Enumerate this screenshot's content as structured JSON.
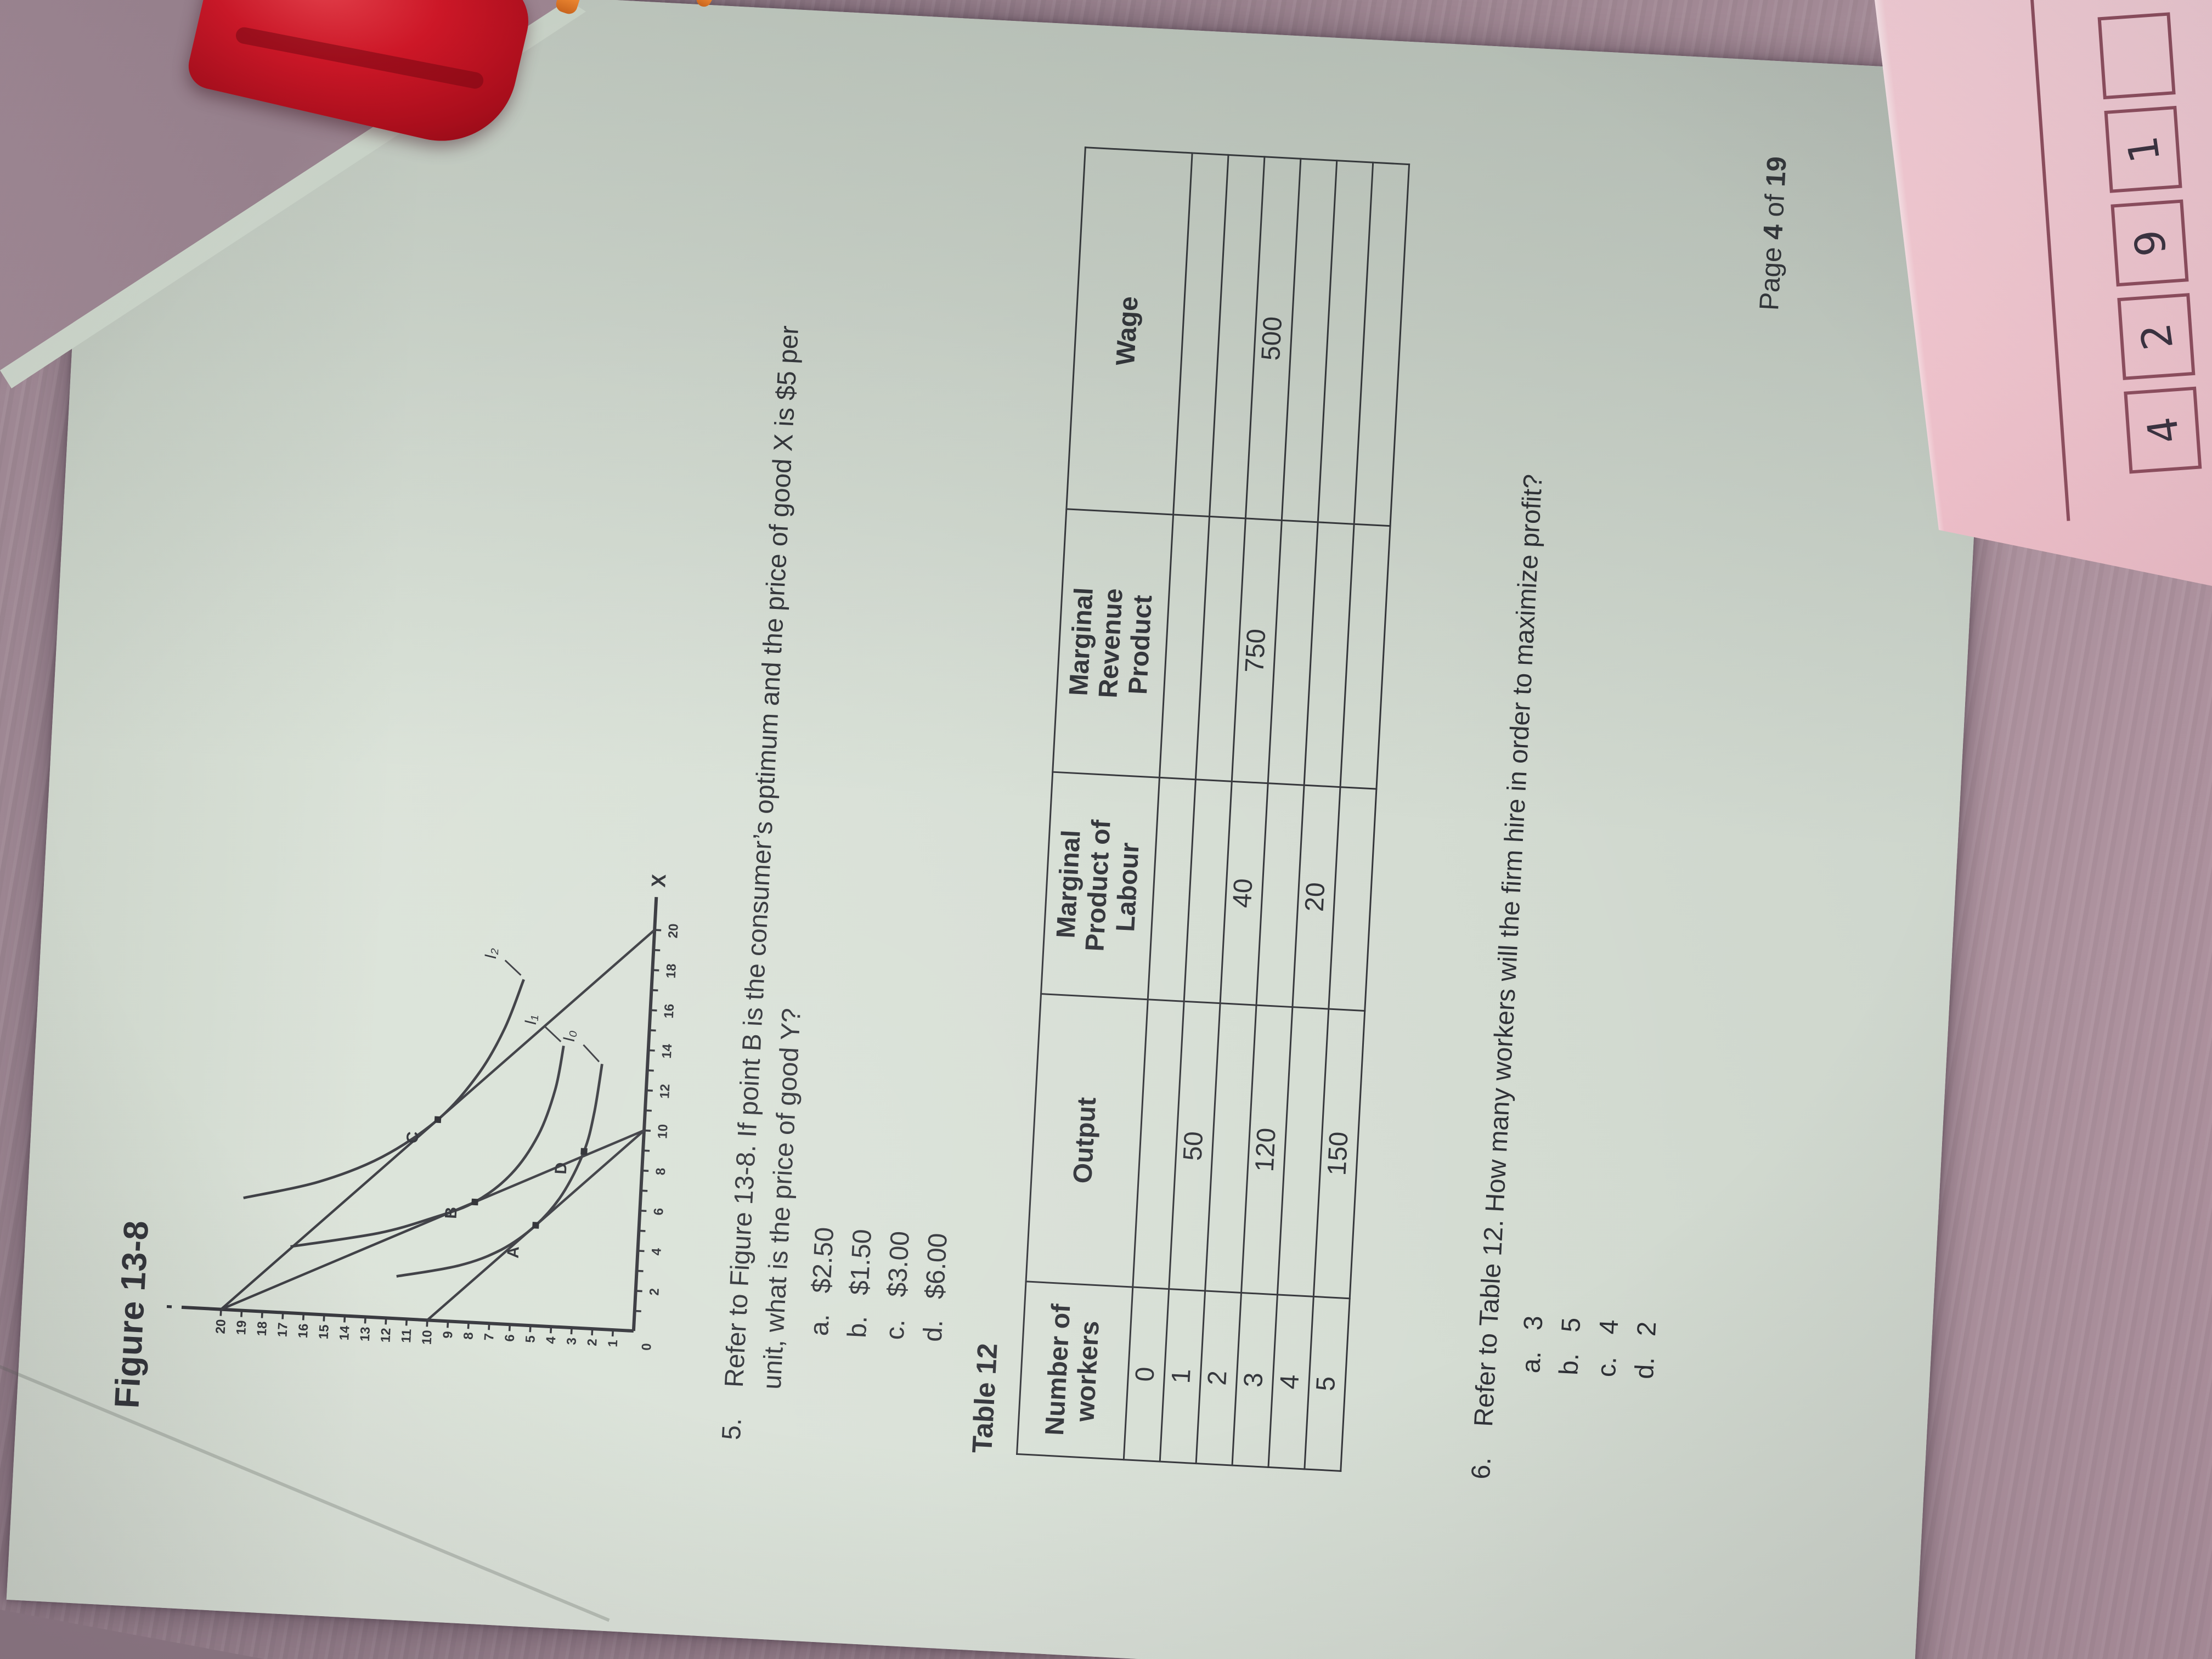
{
  "scene": {
    "desk_color": "#9d8692",
    "paper_color": "#d9e1d6",
    "pink_note": {
      "color": "#f2c8d1",
      "line_color": "#8f4f5f",
      "handwritten_cells": [
        "4",
        "2",
        "9",
        "1",
        ""
      ]
    }
  },
  "page": {
    "figure_title": "Figure 13-8",
    "q5": {
      "number": "5.",
      "line1": "Refer to Figure 13-8. If point B is the consumer’s optimum and the price of good X is $5 per",
      "line2": "unit, what is the price of good Y?",
      "options": [
        {
          "letter": "a.",
          "text": "$2.50"
        },
        {
          "letter": "b.",
          "text": "$1.50"
        },
        {
          "letter": "c.",
          "text": "$3.00"
        },
        {
          "letter": "d.",
          "text": "$6.00"
        }
      ]
    },
    "table_title": "Table 12",
    "table": {
      "columns": [
        {
          "lines": [
            "Number of",
            "workers"
          ]
        },
        {
          "lines": [
            "Output"
          ]
        },
        {
          "lines": [
            "Marginal",
            "Product of",
            "Labour"
          ]
        },
        {
          "lines": [
            "Marginal",
            "Revenue",
            "Product"
          ]
        },
        {
          "lines": [
            "Wage"
          ]
        }
      ],
      "rows": [
        [
          "0",
          "",
          "",
          "",
          ""
        ],
        [
          "1",
          "50",
          "",
          "",
          ""
        ],
        [
          "2",
          "",
          "40",
          "750",
          "500"
        ],
        [
          "3",
          "120",
          "",
          "",
          ""
        ],
        [
          "4",
          "",
          "20",
          "",
          ""
        ],
        [
          "5",
          "150",
          "",
          "",
          ""
        ]
      ]
    },
    "q6": {
      "number": "6.",
      "line1": "Refer to Table 12. How many workers will the firm hire in order to maximize profit?",
      "options": [
        {
          "letter": "a.",
          "text": "3"
        },
        {
          "letter": "b.",
          "text": "5"
        },
        {
          "letter": "c.",
          "text": "4"
        },
        {
          "letter": "d.",
          "text": "2"
        }
      ]
    },
    "footer": {
      "page_word": "Page",
      "page_num": "4",
      "of_word": "of",
      "total": "19"
    }
  },
  "chart_data": {
    "type": "line",
    "title": "Figure 13-8",
    "xlabel": "X",
    "ylabel": "Y",
    "origin_label": "0",
    "xlim": [
      0,
      20
    ],
    "ylim": [
      0,
      20
    ],
    "x_tick_labels": [
      2,
      4,
      6,
      8,
      10,
      12,
      14,
      16,
      18,
      20
    ],
    "y_tick_labels": [
      1,
      2,
      3,
      4,
      5,
      6,
      7,
      8,
      9,
      10,
      11,
      12,
      13,
      14,
      15,
      16,
      17,
      18,
      19,
      20
    ],
    "grid": false,
    "budget_lines": [
      {
        "name": "budget-line-outer",
        "points": [
          [
            0,
            20
          ],
          [
            20,
            0
          ]
        ]
      },
      {
        "name": "budget-line-steep",
        "points": [
          [
            0,
            20
          ],
          [
            10,
            0
          ]
        ]
      },
      {
        "name": "budget-line-inner",
        "points": [
          [
            0,
            10
          ],
          [
            10,
            0
          ]
        ]
      }
    ],
    "indifference_curves": [
      {
        "label": "I₀",
        "points": [
          [
            2.1,
            11.6
          ],
          [
            2.8,
            8.6
          ],
          [
            3.7,
            6.6
          ],
          [
            5,
            5
          ],
          [
            6.6,
            3.8
          ],
          [
            8.8,
            2.85
          ],
          [
            10.8,
            2.45
          ],
          [
            13.2,
            2.2
          ]
        ],
        "label_pos": [
          14.5,
          3.6
        ],
        "leader": [
          [
            13.3,
            2.35
          ],
          [
            14.1,
            3.15
          ]
        ]
      },
      {
        "label": "I₁",
        "points": [
          [
            3.3,
            16.8
          ],
          [
            4.2,
            12.6
          ],
          [
            5.1,
            10.0
          ],
          [
            6,
            8
          ],
          [
            7.5,
            6.3
          ],
          [
            9.5,
            5.1
          ],
          [
            11.8,
            4.4
          ],
          [
            14,
            4.1
          ]
        ],
        "label_pos": [
          15.2,
          5.5
        ],
        "leader": [
          [
            14.2,
            4.25
          ],
          [
            14.9,
            5.05
          ]
        ]
      },
      {
        "label": "I₂",
        "points": [
          [
            5.6,
            19.2
          ],
          [
            6.6,
            15.6
          ],
          [
            8,
            12.6
          ],
          [
            10,
            10
          ],
          [
            12.3,
            8.2
          ],
          [
            14.7,
            7.0
          ],
          [
            17.2,
            6.2
          ]
        ],
        "label_pos": [
          18.4,
          7.6
        ],
        "leader": [
          [
            17.4,
            6.35
          ],
          [
            18.1,
            7.15
          ]
        ]
      }
    ],
    "points": [
      {
        "label": "A",
        "x": 5,
        "y": 5,
        "label_dx": -1.4,
        "label_dy": 1.0
      },
      {
        "label": "B",
        "x": 6,
        "y": 8,
        "label_dx": -0.6,
        "label_dy": 1.1
      },
      {
        "label": "C",
        "x": 10,
        "y": 10,
        "label_dx": -0.95,
        "label_dy": 1.15
      },
      {
        "label": "D",
        "x": 8.8,
        "y": 2.85,
        "label_dx": -0.9,
        "label_dy": 1.05
      }
    ]
  }
}
